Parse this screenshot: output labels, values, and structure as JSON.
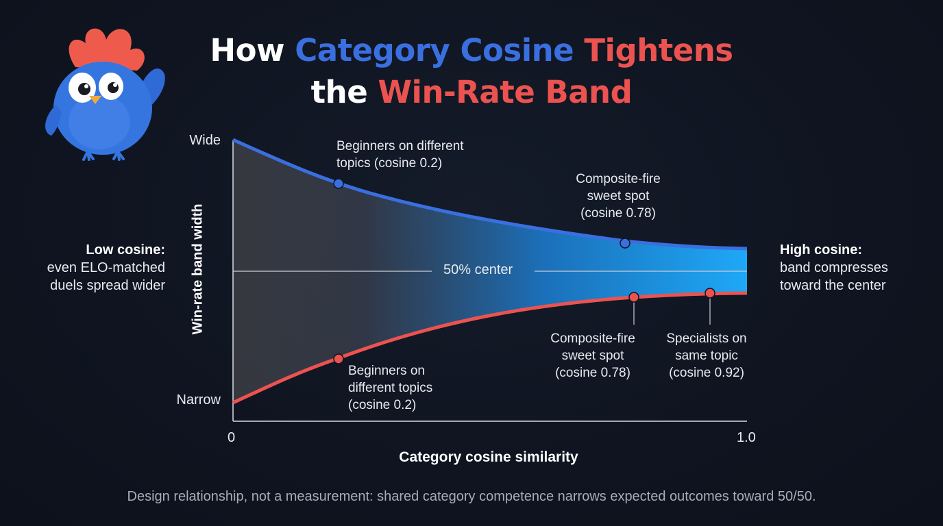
{
  "title": {
    "line1": [
      {
        "text": "How ",
        "color": "white"
      },
      {
        "text": "Category Cosine ",
        "color": "blue"
      },
      {
        "text": "Tightens",
        "color": "red"
      }
    ],
    "line2": [
      {
        "text": "the ",
        "color": "white"
      },
      {
        "text": "Win-Rate Band",
        "color": "red"
      }
    ]
  },
  "left_note": {
    "heading": "Low cosine:",
    "lines": [
      "even ELO-matched",
      "duels spread wider"
    ]
  },
  "right_note": {
    "heading": "High cosine:",
    "lines": [
      "band compresses",
      "toward the center"
    ]
  },
  "axes": {
    "y_label": "Win-rate band width",
    "y_top": "Wide",
    "y_bottom": "Narrow",
    "x_label": "Category cosine similarity",
    "x_min": "0",
    "x_max": "1.0"
  },
  "center_label": "50% center",
  "annotations": {
    "upper_beginners": [
      "Beginners on different",
      "topics (cosine 0.2)"
    ],
    "upper_composite": [
      "Composite-fire",
      "sweet spot",
      "(cosine 0.78)"
    ],
    "lower_beginners": [
      "Beginners on",
      "different topics",
      "(cosine 0.2)"
    ],
    "lower_composite": [
      "Composite-fire",
      "sweet spot",
      "(cosine 0.78)"
    ],
    "lower_specialists": [
      "Specialists on",
      "same topic",
      "(cosine 0.92)"
    ]
  },
  "points": {
    "upper": [
      {
        "cosine": 0.2,
        "label": "upper_beginners"
      },
      {
        "cosine": 0.78,
        "label": "upper_composite"
      }
    ],
    "lower": [
      {
        "cosine": 0.2,
        "label": "lower_beginners"
      },
      {
        "cosine": 0.78,
        "label": "lower_composite"
      },
      {
        "cosine": 0.92,
        "label": "lower_specialists"
      }
    ]
  },
  "colors": {
    "upper_curve": "#3a6fe0",
    "lower_curve": "#ec5350",
    "band_start": "#4a4a4f",
    "band_end": "#1ea3f5",
    "title_blue": "#3a6fe0",
    "title_red": "#ec5350"
  },
  "footer": "Design relationship, not a measurement: shared category competence narrows expected outcomes toward 50/50.",
  "mascot": {
    "icon": "blue-bird-mascot-icon"
  }
}
